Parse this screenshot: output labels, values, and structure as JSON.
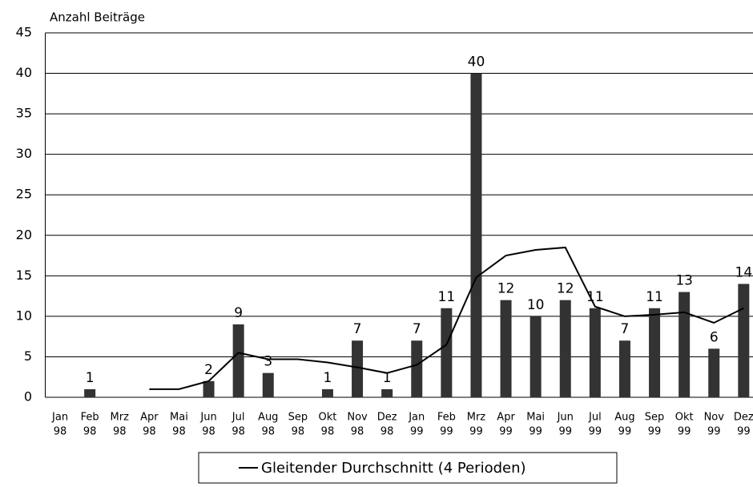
{
  "chart_data": {
    "type": "bar",
    "y_label": "Anzahl Beiträge",
    "categories": [
      [
        "Jan",
        "98"
      ],
      [
        "Feb",
        "98"
      ],
      [
        "Mrz",
        "98"
      ],
      [
        "Apr",
        "98"
      ],
      [
        "Mai",
        "98"
      ],
      [
        "Jun",
        "98"
      ],
      [
        "Jul",
        "98"
      ],
      [
        "Aug",
        "98"
      ],
      [
        "Sep",
        "98"
      ],
      [
        "Okt",
        "98"
      ],
      [
        "Nov",
        "98"
      ],
      [
        "Dez",
        "98"
      ],
      [
        "Jan",
        "99"
      ],
      [
        "Feb",
        "99"
      ],
      [
        "Mrz",
        "99"
      ],
      [
        "Apr",
        "99"
      ],
      [
        "Mai",
        "99"
      ],
      [
        "Jun",
        "99"
      ],
      [
        "Jul",
        "99"
      ],
      [
        "Aug",
        "99"
      ],
      [
        "Sep",
        "99"
      ],
      [
        "Okt",
        "99"
      ],
      [
        "Nov",
        "99"
      ],
      [
        "Dez",
        "99"
      ]
    ],
    "values": [
      0,
      1,
      0,
      0,
      0,
      2,
      9,
      3,
      0,
      1,
      7,
      1,
      7,
      11,
      40,
      12,
      10,
      12,
      11,
      7,
      11,
      13,
      6,
      14
    ],
    "value_labels": [
      null,
      "1",
      null,
      null,
      null,
      "2",
      "9",
      "3",
      null,
      "1",
      "7",
      "1",
      "7",
      "11",
      "40",
      "12",
      "10",
      "12",
      "11",
      "7",
      "11",
      "13",
      "6",
      "14"
    ],
    "color": "#333333",
    "series": [
      {
        "name": "Gleitender Durchschnitt (4 Perioden)",
        "color": "#000000",
        "values": [
          null,
          null,
          null,
          1,
          1,
          2,
          5.5,
          4.7,
          4.7,
          4.3,
          3.7,
          3,
          4,
          6.5,
          14.8,
          17.5,
          18.2,
          18.5,
          11.2,
          10,
          10.2,
          10.5,
          9.2,
          11
        ]
      }
    ],
    "ylim": [
      0,
      45
    ],
    "yticks": [
      0,
      5,
      10,
      15,
      20,
      25,
      30,
      35,
      40,
      45
    ],
    "grid": true
  }
}
